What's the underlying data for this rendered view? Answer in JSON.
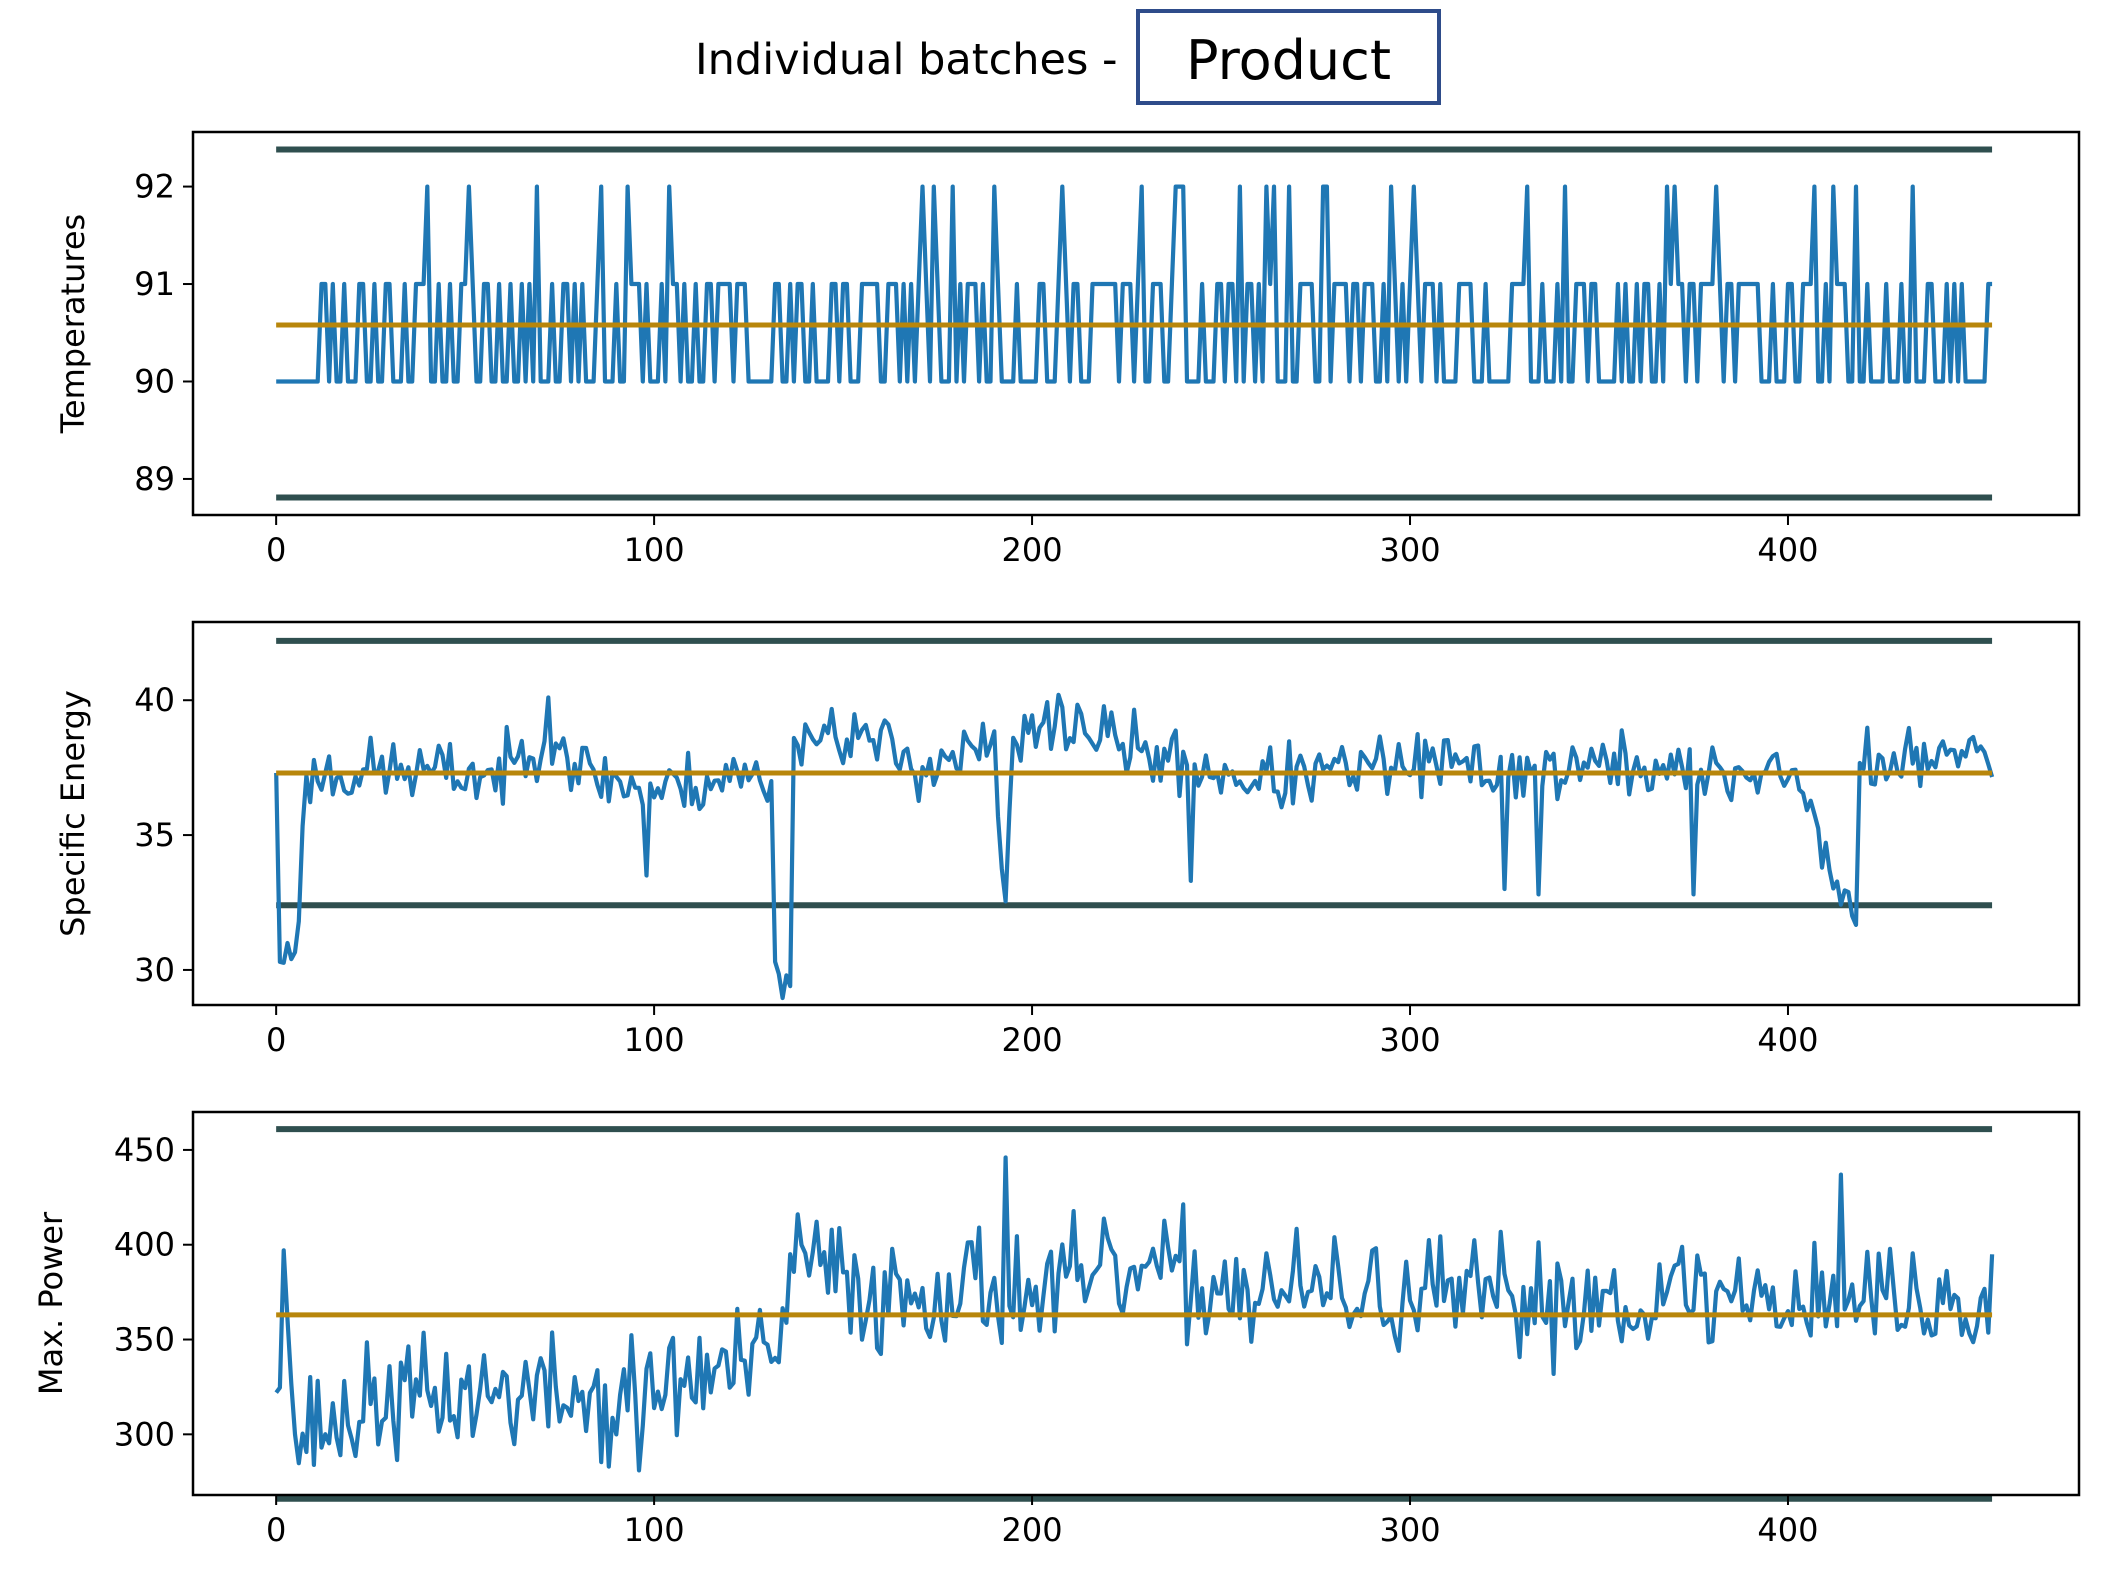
{
  "header": {
    "prefix": "Individual batches -",
    "selector_value": "Product"
  },
  "colors": {
    "series": "#1f77b4",
    "mean": "#b8860b",
    "limits": "#2f4f4f"
  },
  "chart_data": [
    {
      "type": "line",
      "ylabel": "Temperatures",
      "xlim": [
        -22,
        477
      ],
      "ylim": [
        88.63,
        92.56
      ],
      "xticks": [
        0,
        100,
        200,
        300,
        400
      ],
      "yticks": [
        89,
        90,
        91,
        92
      ],
      "mean": 90.58,
      "upper_limit": 92.38,
      "lower_limit": 88.81,
      "x_end": 454,
      "generator": {
        "kind": "discrete",
        "levels": [
          90,
          91,
          92
        ],
        "probs": [
          0.5,
          0.43,
          0.07
        ],
        "start": 90,
        "seed": 11
      }
    },
    {
      "type": "line",
      "ylabel": "Specific Energy",
      "xlim": [
        -22,
        477
      ],
      "ylim": [
        28.7,
        42.9
      ],
      "xticks": [
        0,
        100,
        200,
        300,
        400
      ],
      "yticks": [
        30,
        35,
        40
      ],
      "mean": 37.3,
      "upper_limit": 42.2,
      "lower_limit": 32.4,
      "x_end": 454,
      "anchors": [
        [
          0,
          37.3
        ],
        [
          1,
          30.3
        ],
        [
          3,
          31.0
        ],
        [
          4,
          30.4
        ],
        [
          6,
          31.8
        ],
        [
          8,
          37.2
        ],
        [
          30,
          37.4
        ],
        [
          60,
          37.2
        ],
        [
          70,
          38.7
        ],
        [
          75,
          38.6
        ],
        [
          80,
          37.4
        ],
        [
          95,
          36.8
        ],
        [
          100,
          36.6
        ],
        [
          120,
          37.2
        ],
        [
          131,
          37.0
        ],
        [
          132,
          30.3
        ],
        [
          136,
          29.4
        ],
        [
          137,
          38.6
        ],
        [
          150,
          38.9
        ],
        [
          170,
          37.6
        ],
        [
          190,
          38.2
        ],
        [
          193,
          31.8
        ],
        [
          195,
          38.4
        ],
        [
          210,
          39.2
        ],
        [
          230,
          38.0
        ],
        [
          260,
          37.0
        ],
        [
          300,
          37.6
        ],
        [
          330,
          37.4
        ],
        [
          360,
          37.6
        ],
        [
          380,
          37.1
        ],
        [
          400,
          37.6
        ],
        [
          418,
          31.7
        ],
        [
          419,
          37.7
        ],
        [
          440,
          37.7
        ],
        [
          454,
          38.4
        ]
      ],
      "noise": 0.85,
      "spikes": [
        [
          98,
          33.5
        ],
        [
          72,
          40.1
        ],
        [
          242,
          33.3
        ],
        [
          325,
          33.0
        ],
        [
          334,
          32.8
        ],
        [
          375,
          32.8
        ],
        [
          207,
          40.2
        ]
      ],
      "seed": 23
    },
    {
      "type": "line",
      "ylabel": "Max. Power",
      "xlim": [
        -22,
        477
      ],
      "ylim": [
        268,
        470
      ],
      "xticks": [
        0,
        100,
        200,
        300,
        400
      ],
      "yticks": [
        300,
        350,
        400,
        450
      ],
      "mean": 363,
      "upper_limit": 461,
      "lower_limit": 266,
      "x_end": 454,
      "anchors": [
        [
          0,
          322
        ],
        [
          2,
          397
        ],
        [
          5,
          300
        ],
        [
          30,
          318
        ],
        [
          60,
          322
        ],
        [
          90,
          318
        ],
        [
          120,
          335
        ],
        [
          133,
          338
        ],
        [
          136,
          395
        ],
        [
          160,
          372
        ],
        [
          180,
          380
        ],
        [
          200,
          374
        ],
        [
          230,
          385
        ],
        [
          250,
          378
        ],
        [
          280,
          373
        ],
        [
          320,
          370
        ],
        [
          360,
          373
        ],
        [
          400,
          373
        ],
        [
          430,
          372
        ],
        [
          454,
          363
        ]
      ],
      "noise": 22,
      "spikes": [
        [
          96,
          281
        ],
        [
          193,
          446
        ],
        [
          414,
          437
        ],
        [
          88,
          283
        ],
        [
          17,
          289
        ]
      ],
      "seed": 37
    }
  ]
}
